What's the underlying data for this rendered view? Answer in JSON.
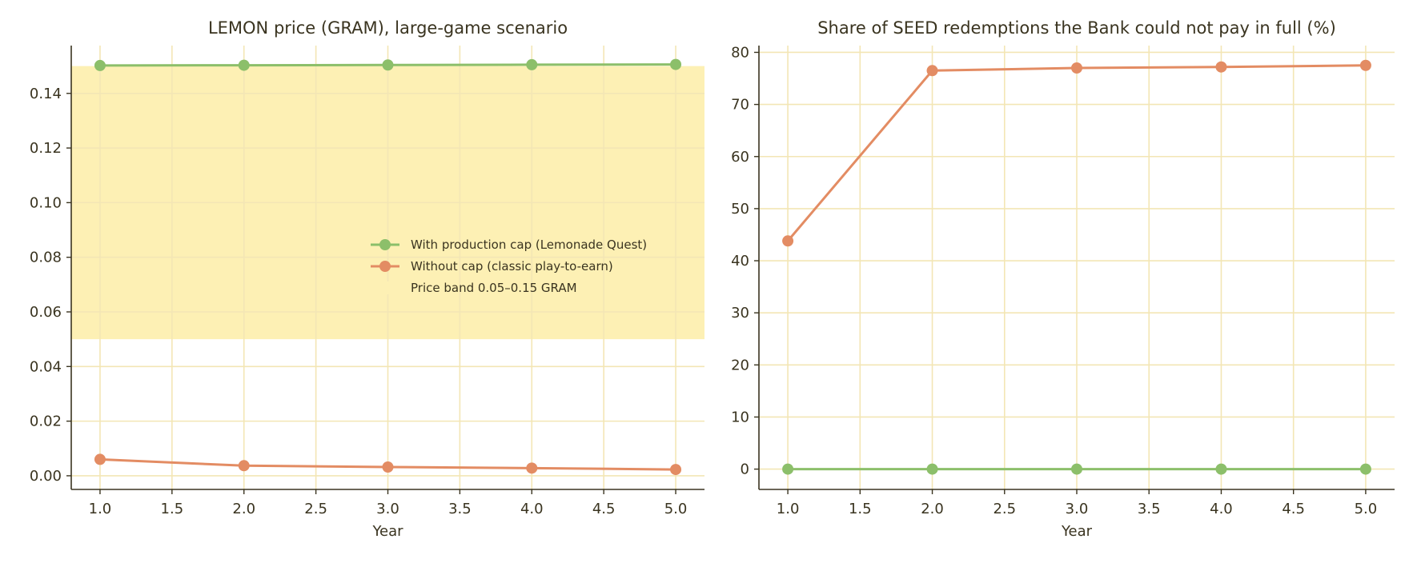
{
  "chart_data": [
    {
      "type": "line",
      "title": "LEMON price (GRAM), large-game scenario",
      "xlabel": "Year",
      "ylabel": "",
      "xlim": [
        0.8,
        5.2
      ],
      "ylim": [
        -0.005,
        0.1575
      ],
      "xticks": [
        1.0,
        1.5,
        2.0,
        2.5,
        3.0,
        3.5,
        4.0,
        4.5,
        5.0
      ],
      "xtick_labels": [
        "1.0",
        "1.5",
        "2.0",
        "2.5",
        "3.0",
        "3.5",
        "4.0",
        "4.5",
        "5.0"
      ],
      "yticks": [
        0,
        0.02,
        0.04,
        0.06,
        0.08,
        0.1,
        0.12,
        0.14
      ],
      "ytick_labels": [
        "0.00",
        "0.02",
        "0.04",
        "0.06",
        "0.08",
        "0.10",
        "0.12",
        "0.14"
      ],
      "grid": true,
      "band": {
        "name": "Price band 0.05–0.15 GRAM",
        "y0": 0.05,
        "y1": 0.15,
        "color": "#fdf0b4"
      },
      "legend_position": "center-right",
      "x": [
        1,
        2,
        3,
        4,
        5
      ],
      "series": [
        {
          "name": "With production cap (Lemonade Quest)",
          "color": "#8cbf6a",
          "values": [
            0.1502,
            0.1503,
            0.1504,
            0.1505,
            0.1506
          ]
        },
        {
          "name": "Without cap (classic play-to-earn)",
          "color": "#e38c63",
          "values": [
            0.006,
            0.0037,
            0.0032,
            0.0028,
            0.0023
          ]
        }
      ]
    },
    {
      "type": "line",
      "title": "Share of SEED redemptions the Bank could not pay in full (%)",
      "xlabel": "Year",
      "ylabel": "",
      "xlim": [
        0.8,
        5.2
      ],
      "ylim": [
        -3.9,
        81.3
      ],
      "xticks": [
        1.0,
        1.5,
        2.0,
        2.5,
        3.0,
        3.5,
        4.0,
        4.5,
        5.0
      ],
      "xtick_labels": [
        "1.0",
        "1.5",
        "2.0",
        "2.5",
        "3.0",
        "3.5",
        "4.0",
        "4.5",
        "5.0"
      ],
      "yticks": [
        0,
        10,
        20,
        30,
        40,
        50,
        60,
        70,
        80
      ],
      "ytick_labels": [
        "0",
        "10",
        "20",
        "30",
        "40",
        "50",
        "60",
        "70",
        "80"
      ],
      "grid": true,
      "x": [
        1,
        2,
        3,
        4,
        5
      ],
      "series": [
        {
          "color": "#8cbf6a",
          "values": [
            0,
            0,
            0,
            0,
            0
          ]
        },
        {
          "color": "#e38c63",
          "values": [
            43.8,
            76.5,
            77.0,
            77.2,
            77.5
          ]
        }
      ]
    }
  ],
  "colors": {
    "grid": "#f3e6b5",
    "axis": "#3a3420",
    "text": "#3a3420"
  }
}
